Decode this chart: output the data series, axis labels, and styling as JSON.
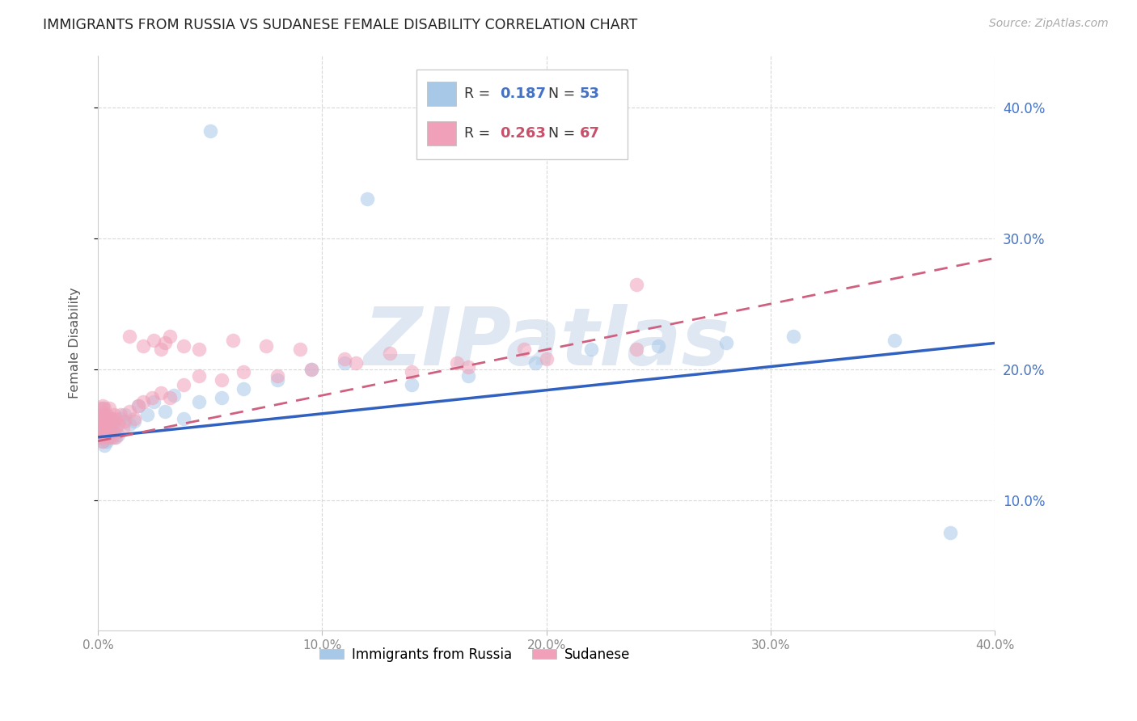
{
  "title": "IMMIGRANTS FROM RUSSIA VS SUDANESE FEMALE DISABILITY CORRELATION CHART",
  "source": "Source: ZipAtlas.com",
  "ylabel": "Female Disability",
  "xlim": [
    0.0,
    0.4
  ],
  "ylim": [
    0.0,
    0.44
  ],
  "russia_R": 0.187,
  "russia_N": 53,
  "sudanese_R": 0.263,
  "sudanese_N": 67,
  "russia_color": "#a8c8e8",
  "sudanese_color": "#f0a0b8",
  "russia_line_color": "#3060c0",
  "sudanese_line_color": "#d06080",
  "text_blue": "#4472c4",
  "text_pink": "#c8506a",
  "grid_color": "#d8d8d8",
  "watermark": "ZIPatlas",
  "watermark_color": "#c8d8ea",
  "background_color": "#ffffff",
  "russia_x": [
    0.001,
    0.001,
    0.001,
    0.002,
    0.002,
    0.002,
    0.002,
    0.002,
    0.003,
    0.003,
    0.003,
    0.003,
    0.003,
    0.004,
    0.004,
    0.004,
    0.004,
    0.005,
    0.005,
    0.005,
    0.006,
    0.006,
    0.007,
    0.007,
    0.008,
    0.009,
    0.01,
    0.012,
    0.014,
    0.016,
    0.018,
    0.022,
    0.025,
    0.03,
    0.034,
    0.038,
    0.045,
    0.055,
    0.065,
    0.08,
    0.095,
    0.11,
    0.14,
    0.165,
    0.195,
    0.22,
    0.25,
    0.28,
    0.31,
    0.355,
    0.05,
    0.12,
    0.38
  ],
  "russia_y": [
    0.155,
    0.148,
    0.16,
    0.152,
    0.158,
    0.145,
    0.163,
    0.17,
    0.152,
    0.158,
    0.148,
    0.142,
    0.165,
    0.155,
    0.16,
    0.145,
    0.152,
    0.15,
    0.16,
    0.148,
    0.155,
    0.162,
    0.148,
    0.16,
    0.155,
    0.15,
    0.162,
    0.165,
    0.158,
    0.16,
    0.172,
    0.165,
    0.175,
    0.168,
    0.18,
    0.162,
    0.175,
    0.178,
    0.185,
    0.192,
    0.2,
    0.205,
    0.188,
    0.195,
    0.205,
    0.215,
    0.218,
    0.22,
    0.225,
    0.222,
    0.382,
    0.33,
    0.075
  ],
  "sudanese_x": [
    0.001,
    0.001,
    0.001,
    0.001,
    0.002,
    0.002,
    0.002,
    0.002,
    0.002,
    0.002,
    0.003,
    0.003,
    0.003,
    0.003,
    0.003,
    0.004,
    0.004,
    0.004,
    0.005,
    0.005,
    0.005,
    0.005,
    0.006,
    0.006,
    0.006,
    0.007,
    0.007,
    0.008,
    0.008,
    0.009,
    0.01,
    0.011,
    0.012,
    0.014,
    0.016,
    0.018,
    0.02,
    0.024,
    0.028,
    0.032,
    0.038,
    0.045,
    0.055,
    0.065,
    0.08,
    0.095,
    0.115,
    0.14,
    0.165,
    0.2,
    0.24,
    0.014,
    0.02,
    0.025,
    0.028,
    0.03,
    0.032,
    0.038,
    0.045,
    0.06,
    0.075,
    0.09,
    0.11,
    0.13,
    0.16,
    0.19,
    0.24
  ],
  "sudanese_y": [
    0.162,
    0.155,
    0.148,
    0.17,
    0.158,
    0.165,
    0.152,
    0.145,
    0.172,
    0.16,
    0.155,
    0.162,
    0.148,
    0.17,
    0.158,
    0.165,
    0.152,
    0.158,
    0.162,
    0.148,
    0.17,
    0.155,
    0.162,
    0.148,
    0.158,
    0.165,
    0.152,
    0.162,
    0.148,
    0.158,
    0.165,
    0.155,
    0.16,
    0.168,
    0.162,
    0.172,
    0.175,
    0.178,
    0.182,
    0.178,
    0.188,
    0.195,
    0.192,
    0.198,
    0.195,
    0.2,
    0.205,
    0.198,
    0.202,
    0.208,
    0.215,
    0.225,
    0.218,
    0.222,
    0.215,
    0.22,
    0.225,
    0.218,
    0.215,
    0.222,
    0.218,
    0.215,
    0.208,
    0.212,
    0.205,
    0.215,
    0.265
  ],
  "russia_line_x0": 0.0,
  "russia_line_y0": 0.148,
  "russia_line_x1": 0.4,
  "russia_line_y1": 0.22,
  "sudanese_line_x0": 0.0,
  "sudanese_line_y0": 0.145,
  "sudanese_line_x1": 0.4,
  "sudanese_line_y1": 0.285
}
